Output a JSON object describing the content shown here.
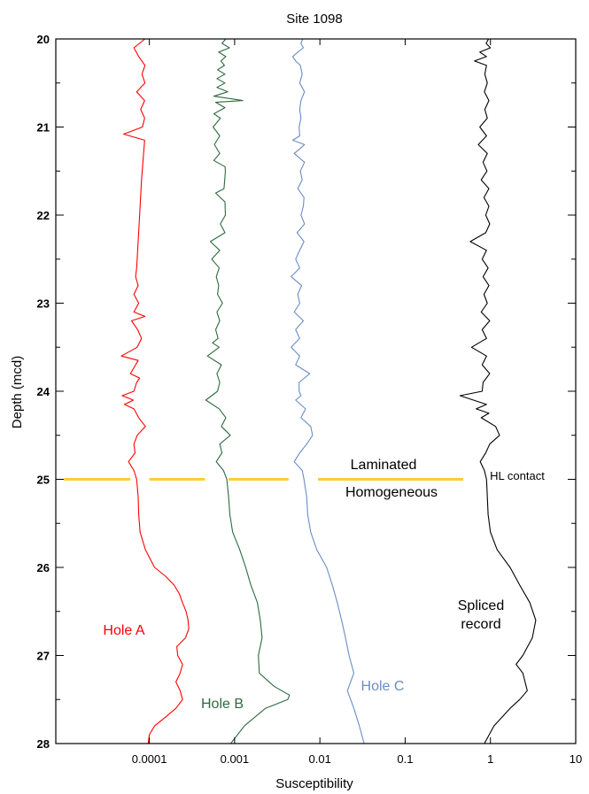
{
  "chart_data": {
    "type": "line",
    "title": "Site 1098",
    "xlabel": "Susceptibility",
    "ylabel": "Depth (mcd)",
    "xscale": "log",
    "xlim": [
      8e-06,
      10
    ],
    "ylim": [
      28,
      20
    ],
    "x_ticks": [
      0.0001,
      0.001,
      0.01,
      0.1,
      1,
      10
    ],
    "x_tick_labels": [
      "0.0001",
      "0.001",
      "0.01",
      "0.1",
      "1",
      "10"
    ],
    "y_ticks": [
      20,
      21,
      22,
      23,
      24,
      25,
      26,
      27,
      28
    ],
    "y_tick_labels": [
      "20",
      "21",
      "22",
      "23",
      "24",
      "25",
      "26",
      "27",
      "28"
    ],
    "grid": false,
    "series": [
      {
        "name": "Hole A",
        "color": "#ff0000",
        "points": [
          [
            20.0,
            8.9e-05
          ],
          [
            20.1,
            6.6e-05
          ],
          [
            20.2,
            7.5e-05
          ],
          [
            20.3,
            8.9e-05
          ],
          [
            20.4,
            8.2e-05
          ],
          [
            20.5,
            8.9e-05
          ],
          [
            20.6,
            7.1e-05
          ],
          [
            20.7,
            8.8e-05
          ],
          [
            20.8,
            7.9e-05
          ],
          [
            20.9,
            8.8e-05
          ],
          [
            21.0,
            8.3e-05
          ],
          [
            21.08,
            5e-05
          ],
          [
            21.15,
            8.8e-05
          ],
          [
            21.6,
            8.1e-05
          ],
          [
            22.1,
            7.6e-05
          ],
          [
            22.6,
            7.1e-05
          ],
          [
            22.7,
            6.9e-05
          ],
          [
            22.8,
            7.4e-05
          ],
          [
            22.9,
            6.6e-05
          ],
          [
            23.0,
            7.5e-05
          ],
          [
            23.1,
            6.6e-05
          ],
          [
            23.15,
            8.9e-05
          ],
          [
            23.2,
            6.2e-05
          ],
          [
            23.3,
            7.3e-05
          ],
          [
            23.4,
            8.1e-05
          ],
          [
            23.5,
            7.2e-05
          ],
          [
            23.6,
            4.7e-05
          ],
          [
            23.65,
            7.4e-05
          ],
          [
            23.7,
            6.9e-05
          ],
          [
            23.8,
            6e-05
          ],
          [
            23.85,
            7.7e-05
          ],
          [
            23.9,
            7.1e-05
          ],
          [
            24.0,
            6.6e-05
          ],
          [
            24.05,
            4.8e-05
          ],
          [
            24.1,
            6.5e-05
          ],
          [
            24.15,
            5.1e-05
          ],
          [
            24.2,
            6.6e-05
          ],
          [
            24.3,
            7.5e-05
          ],
          [
            24.4,
            9e-05
          ],
          [
            24.5,
            7.2e-05
          ],
          [
            24.6,
            6.6e-05
          ],
          [
            24.7,
            6.8e-05
          ],
          [
            24.8,
            5.7e-05
          ],
          [
            24.9,
            6.6e-05
          ],
          [
            25.0,
            7.1e-05
          ],
          [
            25.2,
            7.4e-05
          ],
          [
            25.4,
            7.5e-05
          ],
          [
            25.6,
            7.8e-05
          ],
          [
            25.8,
            9e-05
          ],
          [
            26.0,
            0.000115
          ],
          [
            26.1,
            0.000155
          ],
          [
            26.2,
            0.000195
          ],
          [
            26.3,
            0.000225
          ],
          [
            26.4,
            0.000245
          ],
          [
            26.5,
            0.00027
          ],
          [
            26.6,
            0.000285
          ],
          [
            26.7,
            0.00029
          ],
          [
            26.8,
            0.000265
          ],
          [
            26.9,
            0.00021
          ],
          [
            27.0,
            0.000215
          ],
          [
            27.1,
            0.000245
          ],
          [
            27.2,
            0.00023
          ],
          [
            27.3,
            0.000205
          ],
          [
            27.4,
            0.00023
          ],
          [
            27.5,
            0.000245
          ],
          [
            27.6,
            0.000205
          ],
          [
            27.7,
            0.000155
          ],
          [
            27.8,
            0.000115
          ],
          [
            27.9,
            0.0001
          ],
          [
            28.0,
            9.7e-05
          ]
        ]
      },
      {
        "name": "Hole B",
        "color": "#2d6a3e",
        "points": [
          [
            20.0,
            0.00079
          ],
          [
            20.05,
            0.00071
          ],
          [
            20.1,
            0.00087
          ],
          [
            20.15,
            0.00065
          ],
          [
            20.2,
            0.00079
          ],
          [
            20.25,
            0.00069
          ],
          [
            20.3,
            0.00076
          ],
          [
            20.35,
            0.00063
          ],
          [
            20.4,
            0.00077
          ],
          [
            20.45,
            0.00062
          ],
          [
            20.5,
            0.00077
          ],
          [
            20.55,
            0.00062
          ],
          [
            20.6,
            0.00083
          ],
          [
            20.65,
            0.00057
          ],
          [
            20.7,
            0.00125
          ],
          [
            20.72,
            0.0006
          ],
          [
            20.78,
            0.00077
          ],
          [
            20.85,
            0.00057
          ],
          [
            20.9,
            0.00068
          ],
          [
            21.0,
            0.00056
          ],
          [
            21.1,
            0.00067
          ],
          [
            21.2,
            0.00058
          ],
          [
            21.3,
            0.00067
          ],
          [
            21.38,
            0.00057
          ],
          [
            21.45,
            0.00077
          ],
          [
            21.5,
            0.00078
          ],
          [
            21.7,
            0.00075
          ],
          [
            21.75,
            0.0006
          ],
          [
            21.85,
            0.00077
          ],
          [
            22.0,
            0.00078
          ],
          [
            22.1,
            0.00068
          ],
          [
            22.2,
            0.00077
          ],
          [
            22.3,
            0.00052
          ],
          [
            22.4,
            0.00067
          ],
          [
            22.5,
            0.00054
          ],
          [
            22.6,
            0.00066
          ],
          [
            22.7,
            0.00061
          ],
          [
            22.8,
            0.00065
          ],
          [
            22.9,
            0.00063
          ],
          [
            23.0,
            0.00072
          ],
          [
            23.1,
            0.00062
          ],
          [
            23.2,
            0.00067
          ],
          [
            23.3,
            0.0006
          ],
          [
            23.4,
            0.00064
          ],
          [
            23.45,
            0.00055
          ],
          [
            23.5,
            0.00066
          ],
          [
            23.6,
            0.00048
          ],
          [
            23.7,
            0.0007
          ],
          [
            23.8,
            0.00062
          ],
          [
            23.9,
            0.00067
          ],
          [
            24.0,
            0.00063
          ],
          [
            24.1,
            0.00046
          ],
          [
            24.2,
            0.00066
          ],
          [
            24.3,
            0.00079
          ],
          [
            24.4,
            0.0007
          ],
          [
            24.5,
            0.00089
          ],
          [
            24.6,
            0.00067
          ],
          [
            24.7,
            0.00071
          ],
          [
            24.8,
            0.00061
          ],
          [
            24.9,
            0.00074
          ],
          [
            25.0,
            0.00081
          ],
          [
            25.2,
            0.00085
          ],
          [
            25.4,
            0.00088
          ],
          [
            25.6,
            0.00095
          ],
          [
            25.8,
            0.00115
          ],
          [
            26.0,
            0.00135
          ],
          [
            26.2,
            0.00155
          ],
          [
            26.4,
            0.00185
          ],
          [
            26.6,
            0.002
          ],
          [
            26.8,
            0.0021
          ],
          [
            27.0,
            0.0019
          ],
          [
            27.2,
            0.00195
          ],
          [
            27.35,
            0.0029
          ],
          [
            27.45,
            0.0044
          ],
          [
            27.5,
            0.0042
          ],
          [
            27.6,
            0.0023
          ],
          [
            27.8,
            0.0013
          ],
          [
            28.0,
            0.0009
          ]
        ]
      },
      {
        "name": "Hole C",
        "color": "#6b8cc4",
        "points": [
          [
            20.0,
            0.0063
          ],
          [
            20.05,
            0.006
          ],
          [
            20.1,
            0.0064
          ],
          [
            20.15,
            0.0055
          ],
          [
            20.2,
            0.0048
          ],
          [
            20.25,
            0.0052
          ],
          [
            20.3,
            0.0059
          ],
          [
            20.4,
            0.0062
          ],
          [
            20.5,
            0.0058
          ],
          [
            20.6,
            0.0066
          ],
          [
            20.7,
            0.006
          ],
          [
            20.8,
            0.0058
          ],
          [
            20.9,
            0.006
          ],
          [
            21.0,
            0.0057
          ],
          [
            21.1,
            0.0058
          ],
          [
            21.15,
            0.0048
          ],
          [
            21.2,
            0.0066
          ],
          [
            21.3,
            0.005
          ],
          [
            21.4,
            0.0066
          ],
          [
            21.5,
            0.0059
          ],
          [
            21.6,
            0.0062
          ],
          [
            21.7,
            0.0055
          ],
          [
            21.8,
            0.0065
          ],
          [
            21.9,
            0.0064
          ],
          [
            22.0,
            0.006
          ],
          [
            22.1,
            0.0066
          ],
          [
            22.2,
            0.0054
          ],
          [
            22.3,
            0.0065
          ],
          [
            22.4,
            0.0058
          ],
          [
            22.5,
            0.0052
          ],
          [
            22.6,
            0.0058
          ],
          [
            22.7,
            0.0046
          ],
          [
            22.8,
            0.0061
          ],
          [
            22.9,
            0.0055
          ],
          [
            23.0,
            0.0058
          ],
          [
            23.1,
            0.005
          ],
          [
            23.2,
            0.0064
          ],
          [
            23.3,
            0.0052
          ],
          [
            23.4,
            0.0058
          ],
          [
            23.5,
            0.0046
          ],
          [
            23.6,
            0.0058
          ],
          [
            23.7,
            0.0052
          ],
          [
            23.8,
            0.0076
          ],
          [
            23.9,
            0.0057
          ],
          [
            24.0,
            0.0057
          ],
          [
            24.05,
            0.006
          ],
          [
            24.1,
            0.0052
          ],
          [
            24.2,
            0.0068
          ],
          [
            24.3,
            0.006
          ],
          [
            24.4,
            0.0078
          ],
          [
            24.5,
            0.0082
          ],
          [
            24.6,
            0.007
          ],
          [
            24.7,
            0.0058
          ],
          [
            24.8,
            0.005
          ],
          [
            24.9,
            0.0062
          ],
          [
            25.0,
            0.0065
          ],
          [
            25.2,
            0.007
          ],
          [
            25.4,
            0.0072
          ],
          [
            25.6,
            0.0078
          ],
          [
            25.8,
            0.0092
          ],
          [
            26.0,
            0.012
          ],
          [
            26.2,
            0.014
          ],
          [
            26.4,
            0.016
          ],
          [
            26.6,
            0.018
          ],
          [
            26.8,
            0.02
          ],
          [
            27.0,
            0.022
          ],
          [
            27.2,
            0.025
          ],
          [
            27.4,
            0.021
          ],
          [
            27.6,
            0.025
          ],
          [
            27.8,
            0.029
          ],
          [
            28.0,
            0.033
          ]
        ]
      },
      {
        "name": "Spliced record",
        "color": "#000000",
        "points": [
          [
            20.0,
            0.95
          ],
          [
            20.05,
            0.89
          ],
          [
            20.1,
            1.0
          ],
          [
            20.15,
            0.75
          ],
          [
            20.2,
            0.9
          ],
          [
            20.25,
            0.65
          ],
          [
            20.3,
            0.9
          ],
          [
            20.4,
            0.86
          ],
          [
            20.5,
            0.92
          ],
          [
            20.6,
            0.85
          ],
          [
            20.7,
            0.96
          ],
          [
            20.8,
            0.86
          ],
          [
            20.9,
            0.92
          ],
          [
            21.0,
            0.75
          ],
          [
            21.1,
            0.9
          ],
          [
            21.2,
            0.72
          ],
          [
            21.3,
            0.92
          ],
          [
            21.4,
            0.82
          ],
          [
            21.5,
            0.91
          ],
          [
            21.6,
            0.78
          ],
          [
            21.7,
            0.96
          ],
          [
            21.8,
            0.84
          ],
          [
            21.9,
            0.96
          ],
          [
            22.0,
            0.88
          ],
          [
            22.1,
            0.98
          ],
          [
            22.2,
            0.88
          ],
          [
            22.3,
            0.58
          ],
          [
            22.4,
            0.9
          ],
          [
            22.5,
            0.8
          ],
          [
            22.6,
            0.94
          ],
          [
            22.7,
            0.82
          ],
          [
            22.8,
            0.96
          ],
          [
            22.9,
            0.84
          ],
          [
            23.0,
            0.92
          ],
          [
            23.1,
            0.78
          ],
          [
            23.2,
            0.98
          ],
          [
            23.3,
            0.8
          ],
          [
            23.4,
            0.9
          ],
          [
            23.5,
            0.6
          ],
          [
            23.6,
            0.9
          ],
          [
            23.7,
            0.8
          ],
          [
            23.8,
            0.98
          ],
          [
            23.9,
            0.82
          ],
          [
            24.0,
            0.8
          ],
          [
            24.05,
            0.44
          ],
          [
            24.15,
            0.9
          ],
          [
            24.2,
            0.68
          ],
          [
            24.25,
            0.96
          ],
          [
            24.3,
            0.78
          ],
          [
            24.4,
            1.15
          ],
          [
            24.5,
            1.28
          ],
          [
            24.6,
            0.98
          ],
          [
            24.7,
            0.88
          ],
          [
            24.8,
            0.76
          ],
          [
            24.9,
            0.85
          ],
          [
            25.0,
            0.9
          ],
          [
            25.2,
            0.92
          ],
          [
            25.4,
            0.94
          ],
          [
            25.6,
            1.0
          ],
          [
            25.8,
            1.2
          ],
          [
            26.0,
            1.7
          ],
          [
            26.2,
            2.2
          ],
          [
            26.4,
            2.9
          ],
          [
            26.6,
            3.4
          ],
          [
            26.8,
            3.1
          ],
          [
            27.0,
            2.4
          ],
          [
            27.1,
            2.0
          ],
          [
            27.2,
            2.4
          ],
          [
            27.4,
            2.7
          ],
          [
            27.5,
            2.2
          ],
          [
            27.6,
            1.7
          ],
          [
            27.8,
            1.1
          ],
          [
            28.0,
            0.85
          ]
        ]
      }
    ],
    "contact": {
      "depth": 25.0,
      "color": "#ffcc33",
      "dash_segments": [
        [
          1e-05,
          6e-05
        ],
        [
          0.0001,
          0.00045
        ],
        [
          0.00085,
          0.0043
        ],
        [
          0.0095,
          0.48
        ]
      ]
    },
    "annotations": {
      "hole_a": "Hole A",
      "hole_b": "Hole B",
      "hole_c": "Hole C",
      "spliced_1": "Spliced",
      "spliced_2": "record",
      "laminated": "Laminated",
      "homogeneous": "Homogeneous",
      "hl_contact": "HL contact"
    }
  }
}
